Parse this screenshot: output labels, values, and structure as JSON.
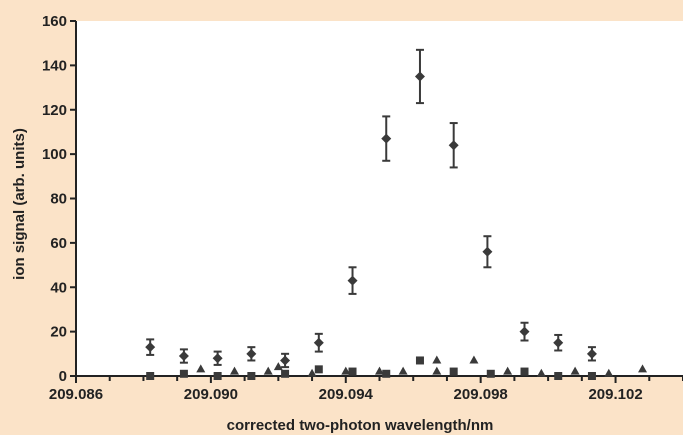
{
  "colors": {
    "page_background": "#fbe3c8",
    "plot_background": "#ffffff",
    "marker": "#3a3a3a",
    "axis": "#222222"
  },
  "chart_data": {
    "type": "scatter",
    "title": "",
    "xlabel": "corrected two-photon wavelength/nm",
    "ylabel": "ion signal (arb. units)",
    "xlim": [
      209.086,
      209.104
    ],
    "ylim": [
      0,
      160
    ],
    "xticks": [
      "209.086",
      "209.090",
      "209.094",
      "209.098",
      "209.102"
    ],
    "yticks": [
      "0",
      "20",
      "40",
      "60",
      "80",
      "100",
      "120",
      "140",
      "160"
    ],
    "grid": false,
    "legend": "none",
    "series": [
      {
        "marker": "diamond",
        "error_bars": true,
        "points": [
          {
            "x": 209.0882,
            "y": 13,
            "err": 3.5
          },
          {
            "x": 209.0892,
            "y": 9,
            "err": 3
          },
          {
            "x": 209.0902,
            "y": 8,
            "err": 3
          },
          {
            "x": 209.0912,
            "y": 10,
            "err": 3
          },
          {
            "x": 209.0922,
            "y": 7,
            "err": 3
          },
          {
            "x": 209.0932,
            "y": 15,
            "err": 4
          },
          {
            "x": 209.0942,
            "y": 43,
            "err": 6
          },
          {
            "x": 209.0952,
            "y": 107,
            "err": 10
          },
          {
            "x": 209.0962,
            "y": 135,
            "err": 12
          },
          {
            "x": 209.0972,
            "y": 104,
            "err": 10
          },
          {
            "x": 209.0982,
            "y": 56,
            "err": 7
          },
          {
            "x": 209.0993,
            "y": 20,
            "err": 4
          },
          {
            "x": 209.1003,
            "y": 15,
            "err": 3.5
          },
          {
            "x": 209.1013,
            "y": 10,
            "err": 3
          }
        ]
      },
      {
        "marker": "square",
        "error_bars": false,
        "points": [
          {
            "x": 209.0882,
            "y": 0
          },
          {
            "x": 209.0892,
            "y": 1
          },
          {
            "x": 209.0902,
            "y": 0
          },
          {
            "x": 209.0912,
            "y": 0
          },
          {
            "x": 209.0922,
            "y": 1
          },
          {
            "x": 209.0932,
            "y": 3
          },
          {
            "x": 209.0942,
            "y": 2
          },
          {
            "x": 209.0952,
            "y": 1
          },
          {
            "x": 209.0962,
            "y": 7
          },
          {
            "x": 209.0972,
            "y": 2
          },
          {
            "x": 209.0983,
            "y": 1
          },
          {
            "x": 209.0993,
            "y": 2
          },
          {
            "x": 209.1003,
            "y": 0
          },
          {
            "x": 209.1013,
            "y": 0
          }
        ]
      },
      {
        "marker": "triangle",
        "error_bars": false,
        "points": [
          {
            "x": 209.0897,
            "y": 3
          },
          {
            "x": 209.0907,
            "y": 2
          },
          {
            "x": 209.0917,
            "y": 2
          },
          {
            "x": 209.092,
            "y": 4
          },
          {
            "x": 209.093,
            "y": 1
          },
          {
            "x": 209.094,
            "y": 2
          },
          {
            "x": 209.095,
            "y": 2
          },
          {
            "x": 209.0957,
            "y": 2
          },
          {
            "x": 209.0967,
            "y": 2
          },
          {
            "x": 209.0967,
            "y": 7
          },
          {
            "x": 209.0978,
            "y": 7
          },
          {
            "x": 209.0988,
            "y": 2
          },
          {
            "x": 209.0998,
            "y": 1
          },
          {
            "x": 209.1008,
            "y": 2
          },
          {
            "x": 209.1018,
            "y": 1
          },
          {
            "x": 209.1028,
            "y": 3
          }
        ]
      }
    ]
  }
}
